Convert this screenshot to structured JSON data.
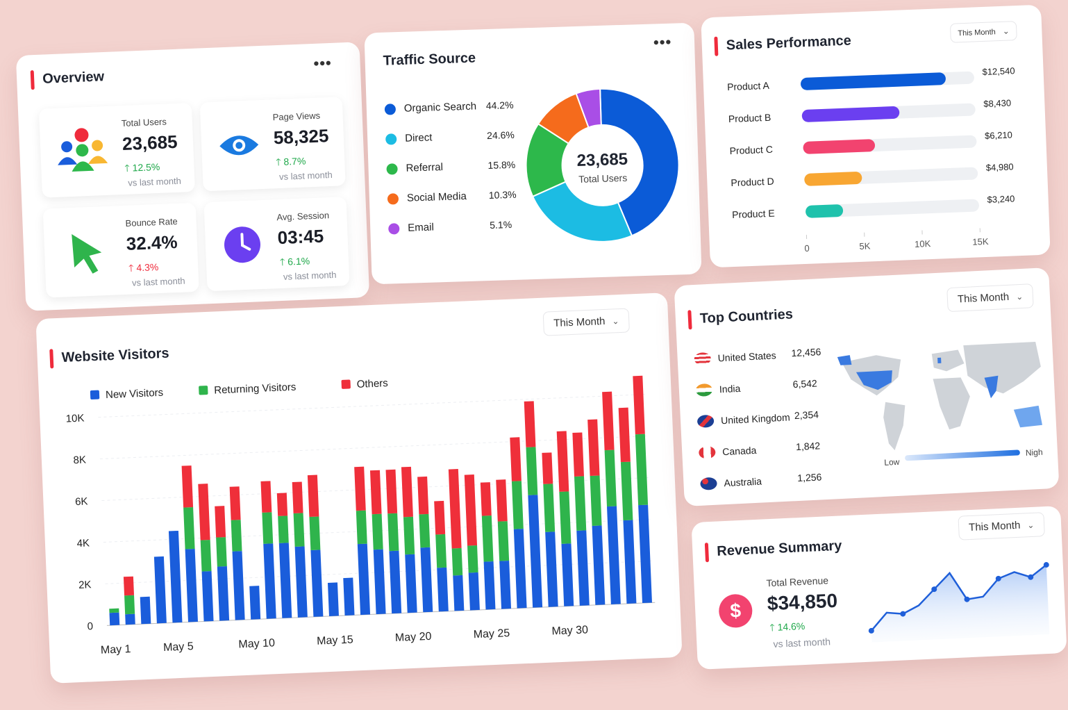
{
  "overview": {
    "title": "Overview",
    "stats": [
      {
        "label": "Total Users",
        "value": "23,685",
        "change": "12.5%",
        "sub": "vs last month",
        "icon": "users-icon"
      },
      {
        "label": "Page Views",
        "value": "58,325",
        "change": "8.7%",
        "sub": "vs last month",
        "icon": "eye-icon"
      },
      {
        "label": "Bounce Rate",
        "value": "32.4%",
        "change": "4.3%",
        "sub": "vs last month",
        "icon": "cursor-icon"
      },
      {
        "label": "Avg. Session",
        "value": "03:45",
        "change": "6.1%",
        "sub": "vs last month",
        "icon": "clock-icon"
      }
    ]
  },
  "traffic": {
    "title": "Traffic Source",
    "center_value": "23,685",
    "center_label": "Total Users",
    "sources": [
      {
        "name": "Organic Search",
        "value": "44.2%",
        "pct": 44.2,
        "color": "#0b5bd7"
      },
      {
        "name": "Direct",
        "value": "24.6%",
        "pct": 24.6,
        "color": "#1cbce3"
      },
      {
        "name": "Referral",
        "value": "15.8%",
        "pct": 15.8,
        "color": "#2db84b"
      },
      {
        "name": "Social Media",
        "value": "10.3%",
        "pct": 10.3,
        "color": "#f56b1c"
      },
      {
        "name": "Email",
        "value": "5.1%",
        "pct": 5.1,
        "color": "#a94ee6"
      }
    ]
  },
  "sales": {
    "title": "Sales Performance",
    "period": "This Month",
    "chart_data": {
      "type": "bar",
      "categories": [
        "Product A",
        "Product B",
        "Product C",
        "Product D",
        "Product E"
      ],
      "values": [
        12540,
        8430,
        6210,
        4980,
        3240
      ],
      "value_labels": [
        "$12,540",
        "$8,430",
        "$6,210",
        "$4,980",
        "$3,240"
      ],
      "colors": [
        "#0b5bd7",
        "#6b3ff0",
        "#f2436f",
        "#f8a632",
        "#1fc2ac"
      ],
      "xlim": [
        0,
        15000
      ],
      "xticks": [
        "0",
        "5K",
        "10K",
        "15K"
      ]
    }
  },
  "countries": {
    "title": "Top Countries",
    "period": "This Month",
    "items": [
      {
        "name": "United States",
        "value": "12,456",
        "flag": "us-flag-icon"
      },
      {
        "name": "India",
        "value": "6,542",
        "flag": "india-flag-icon"
      },
      {
        "name": "United Kingdom",
        "value": "2,354",
        "flag": "uk-flag-icon"
      },
      {
        "name": "Canada",
        "value": "1,842",
        "flag": "canada-flag-icon"
      },
      {
        "name": "Australia",
        "value": "1,256",
        "flag": "australia-flag-icon"
      }
    ],
    "legend_low": "Low",
    "legend_high": "Nigh"
  },
  "visitors": {
    "title": "Website Visitors",
    "period": "This Month",
    "chart_data": {
      "type": "bar",
      "stacked": true,
      "ylim": [
        0,
        10000
      ],
      "yticks": [
        "0",
        "2K",
        "4K",
        "6K",
        "8K",
        "10K"
      ],
      "xticks": [
        "May 1",
        "May 5",
        "May 10",
        "May 15",
        "May 20",
        "May 25",
        "May 30"
      ],
      "series": [
        {
          "name": "New Visitors",
          "color": "#1a5ddb",
          "values": [
            600,
            500,
            1300,
            3200,
            4400,
            3500,
            2400,
            2600,
            3300,
            1600,
            3600,
            3600,
            3400,
            3200,
            1600,
            1800,
            3400,
            3100,
            3000,
            2800,
            3100,
            2100,
            1700,
            1800,
            2300,
            2300,
            3800,
            5400,
            3600,
            3000,
            3600,
            3800,
            4700,
            4000,
            4700
          ]
        },
        {
          "name": "Returning Visitors",
          "color": "#2fb44c",
          "values": [
            200,
            900,
            0,
            0,
            0,
            2000,
            1500,
            1400,
            1500,
            0,
            1500,
            1300,
            1600,
            1600,
            0,
            0,
            1600,
            1700,
            1800,
            1800,
            1600,
            1600,
            1300,
            1300,
            2200,
            1900,
            2300,
            2300,
            2300,
            2500,
            2600,
            2400,
            2700,
            2800,
            3400
          ]
        },
        {
          "name": "Others",
          "color": "#ef2f3a",
          "values": [
            0,
            900,
            0,
            0,
            0,
            2000,
            2700,
            1500,
            1600,
            0,
            1500,
            1100,
            1500,
            2000,
            0,
            0,
            2100,
            2100,
            2100,
            2400,
            1800,
            1600,
            3800,
            3400,
            1600,
            2000,
            2100,
            2200,
            1500,
            2900,
            2100,
            2700,
            2800,
            2600,
            2800
          ]
        }
      ]
    }
  },
  "revenue": {
    "title": "Revenue Summary",
    "period": "This Month",
    "label": "Total Revenue",
    "value": "$34,850",
    "change": "14.6%",
    "sub": "vs last month",
    "sparkline": [
      12,
      30,
      28,
      36,
      52,
      68,
      40,
      42,
      60,
      66,
      60,
      72
    ]
  }
}
